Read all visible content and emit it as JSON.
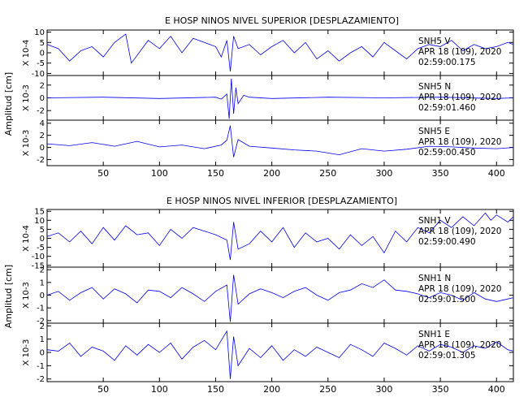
{
  "figure": {
    "trace_color": "#0000ee",
    "panel_groups": [
      {
        "title": "E HOSP NINOS NIVEL SUPERIOR [DESPLAZAMIENTO]",
        "ylabel": "Amplitud [cm]",
        "panels": [
          {
            "multiplier": "X 10-4",
            "station": "SNH5 V",
            "date": "APR 18 (109), 2020",
            "time": "02:59:00.175"
          },
          {
            "multiplier": "X 10-3",
            "station": "SNH5 N",
            "date": "APR 18 (109), 2020",
            "time": "02:59:01.460"
          },
          {
            "multiplier": "X 10-3",
            "station": "SNH5 E",
            "date": "APR 18 (109), 2020",
            "time": "02:59:00.450"
          }
        ]
      },
      {
        "title": "E HOSP NINOS NIVEL INFERIOR [DESPLAZAMIENTO]",
        "ylabel": "Amplitud [cm]",
        "panels": [
          {
            "multiplier": "X 10-4",
            "station": "SNH1 V",
            "date": "APR 18 (109), 2020",
            "time": "02:59:00.490"
          },
          {
            "multiplier": "X 10-3",
            "station": "SNH1 N",
            "date": "APR 18 (109), 2020",
            "time": "02:59:01.500"
          },
          {
            "multiplier": "X 10-3",
            "station": "SNH1 E",
            "date": "APR 18 (109), 2020",
            "time": "02:59:01.305"
          }
        ]
      }
    ]
  },
  "chart_data": [
    {
      "type": "line",
      "title": "E HOSP NINOS NIVEL SUPERIOR [DESPLAZAMIENTO]",
      "ylabel": "Amplitud [cm]",
      "xlim": [
        0,
        415
      ],
      "xticks": [
        50,
        100,
        150,
        200,
        250,
        300,
        350,
        400
      ],
      "panels": [
        {
          "name": "SNH5 V",
          "multiplier": "X 10-4",
          "ylim": [
            -11,
            11
          ],
          "yticks": [
            10,
            5,
            0,
            -5,
            -10
          ],
          "x": [
            0,
            10,
            20,
            30,
            40,
            50,
            60,
            70,
            75,
            90,
            100,
            110,
            120,
            130,
            140,
            150,
            155,
            160,
            163,
            166,
            170,
            180,
            190,
            200,
            210,
            220,
            230,
            240,
            250,
            260,
            270,
            280,
            290,
            300,
            310,
            320,
            330,
            340,
            350,
            360,
            370,
            380,
            390,
            400,
            410,
            415
          ],
          "values": [
            4,
            2,
            -4,
            1,
            3,
            -2,
            5,
            9,
            -5,
            6,
            2,
            8,
            0,
            7,
            5,
            3,
            -2,
            6,
            -9,
            8,
            2,
            4,
            -1,
            3,
            6,
            0,
            5,
            -3,
            1,
            -4,
            0,
            3,
            -2,
            5,
            1,
            -3,
            2,
            4,
            3,
            6,
            1,
            4,
            2,
            3,
            5,
            4
          ]
        },
        {
          "name": "SNH5 N",
          "multiplier": "X 10-3",
          "ylim": [
            -3.5,
            3.5
          ],
          "yticks": [
            2,
            0,
            -2
          ],
          "x": [
            0,
            50,
            100,
            150,
            155,
            160,
            162,
            164,
            166,
            168,
            170,
            175,
            180,
            200,
            250,
            300,
            350,
            400,
            415
          ],
          "values": [
            0,
            0.1,
            -0.1,
            0.1,
            -0.2,
            0.6,
            -3.3,
            3.0,
            -2.5,
            1.6,
            -0.9,
            0.4,
            0.1,
            -0.1,
            0.1,
            0.0,
            0.1,
            -0.1,
            0
          ]
        },
        {
          "name": "SNH5 E",
          "multiplier": "X 10-3",
          "ylim": [
            -3,
            4.5
          ],
          "yticks": [
            4,
            2,
            0,
            -2
          ],
          "x": [
            0,
            20,
            40,
            60,
            80,
            100,
            120,
            140,
            155,
            160,
            163,
            166,
            170,
            180,
            200,
            220,
            240,
            260,
            280,
            300,
            320,
            340,
            360,
            380,
            400,
            415
          ],
          "values": [
            0.6,
            0.3,
            0.8,
            0.2,
            1.0,
            0.1,
            0.4,
            -0.2,
            0.4,
            1.2,
            3.6,
            -1.6,
            1.3,
            0.2,
            -0.1,
            -0.4,
            -0.6,
            -1.2,
            -0.2,
            -0.6,
            -0.3,
            0.2,
            0.1,
            -0.1,
            -0.2,
            0
          ]
        }
      ]
    },
    {
      "type": "line",
      "title": "E HOSP NINOS NIVEL INFERIOR [DESPLAZAMIENTO]",
      "ylabel": "Amplitud [cm]",
      "xlim": [
        0,
        415
      ],
      "xticks": [
        50,
        100,
        150,
        200,
        250,
        300,
        350,
        400
      ],
      "panels": [
        {
          "name": "SNH1 V",
          "multiplier": "X 10-4",
          "ylim": [
            -16,
            16
          ],
          "yticks": [
            15,
            10,
            5,
            0,
            -5,
            -10,
            -15
          ],
          "x": [
            0,
            10,
            20,
            30,
            40,
            50,
            60,
            70,
            80,
            90,
            100,
            110,
            120,
            130,
            140,
            150,
            160,
            163,
            166,
            170,
            180,
            190,
            200,
            210,
            220,
            230,
            240,
            250,
            260,
            270,
            280,
            290,
            300,
            310,
            320,
            330,
            340,
            350,
            360,
            370,
            380,
            390,
            395,
            400,
            410,
            415
          ],
          "values": [
            1,
            3,
            -2,
            4,
            -3,
            6,
            -1,
            7,
            2,
            3,
            -4,
            5,
            0,
            6,
            4,
            2,
            -1,
            -12,
            9,
            -6,
            -3,
            4,
            -2,
            6,
            -5,
            3,
            -2,
            0,
            -6,
            2,
            -4,
            1,
            -8,
            4,
            -2,
            6,
            3,
            10,
            6,
            12,
            7,
            14,
            10,
            13,
            9,
            12
          ]
        },
        {
          "name": "SNH1 N",
          "multiplier": "X 10-3",
          "ylim": [
            -2.2,
            2.2
          ],
          "yticks": [
            2,
            1,
            0,
            -1,
            -2
          ],
          "x": [
            0,
            10,
            20,
            30,
            40,
            50,
            60,
            70,
            80,
            90,
            100,
            110,
            120,
            130,
            140,
            150,
            160,
            163,
            166,
            170,
            180,
            190,
            200,
            210,
            220,
            230,
            240,
            250,
            260,
            270,
            280,
            290,
            300,
            310,
            320,
            330,
            340,
            350,
            360,
            370,
            380,
            390,
            400,
            410,
            415
          ],
          "values": [
            0,
            0.3,
            -0.4,
            0.2,
            0.6,
            -0.3,
            0.5,
            0.1,
            -0.6,
            0.4,
            0.3,
            -0.2,
            0.6,
            0.1,
            -0.5,
            0.3,
            0.8,
            -2.1,
            1.6,
            -0.7,
            0.1,
            0.5,
            0.2,
            -0.2,
            0.3,
            0.6,
            0.0,
            -0.4,
            0.2,
            0.4,
            0.9,
            0.6,
            1.2,
            0.4,
            0.3,
            0.1,
            -0.2,
            0.2,
            0.0,
            -0.4,
            0.2,
            -0.3,
            -0.5,
            -0.3,
            -0.2
          ]
        },
        {
          "name": "SNH1 E",
          "multiplier": "X 10-3",
          "ylim": [
            -2.2,
            2.2
          ],
          "yticks": [
            2,
            1,
            0,
            -1,
            -2
          ],
          "x": [
            0,
            10,
            20,
            30,
            40,
            50,
            60,
            70,
            80,
            90,
            100,
            110,
            120,
            130,
            140,
            150,
            160,
            163,
            166,
            170,
            180,
            190,
            200,
            210,
            220,
            230,
            240,
            250,
            260,
            270,
            280,
            290,
            300,
            310,
            320,
            330,
            340,
            350,
            360,
            370,
            380,
            390,
            400,
            410,
            415
          ],
          "values": [
            0.2,
            0.1,
            0.7,
            -0.3,
            0.4,
            0.1,
            -0.6,
            0.5,
            -0.2,
            0.6,
            0.0,
            0.7,
            -0.5,
            0.4,
            0.9,
            0.2,
            1.6,
            -2.0,
            1.2,
            -1.0,
            0.3,
            -0.4,
            0.5,
            -0.6,
            0.2,
            -0.3,
            0.4,
            0.0,
            -0.4,
            0.6,
            0.2,
            -0.3,
            0.7,
            0.3,
            -0.2,
            0.5,
            0.1,
            0.6,
            0.4,
            0.0,
            0.5,
            0.3,
            0.8,
            0.2,
            0.1
          ]
        }
      ]
    }
  ]
}
